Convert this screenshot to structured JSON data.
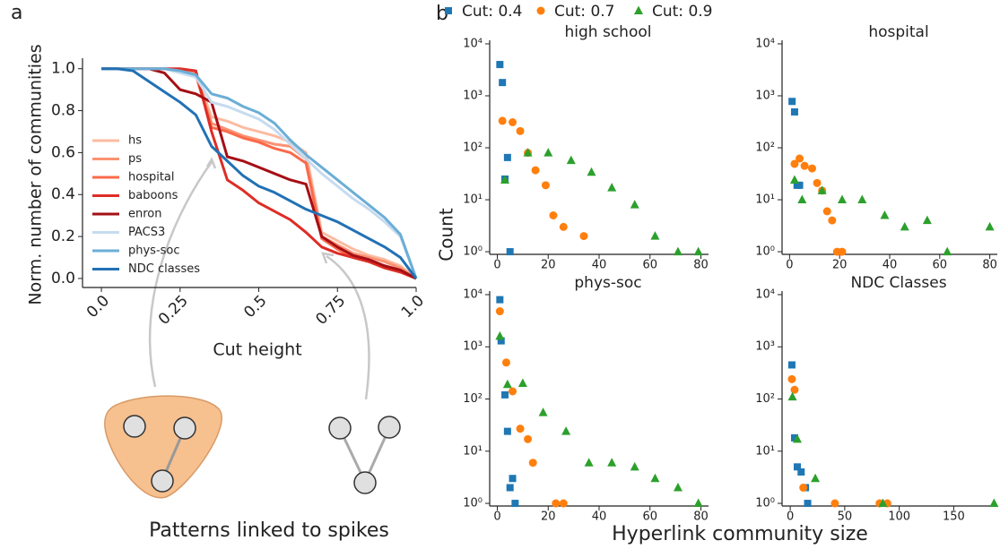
{
  "panels": [
    "a",
    "b"
  ],
  "figure": {
    "ylabel": "Count",
    "xlabel": "Hyperlink community size",
    "caption": "Patterns linked to spikes"
  },
  "chart_data": [
    {
      "type": "line",
      "xlabel": "Cut height",
      "ylabel": "Norm. number of communities",
      "x": [
        0,
        0.05,
        0.1,
        0.15,
        0.2,
        0.25,
        0.3,
        0.35,
        0.4,
        0.45,
        0.5,
        0.55,
        0.6,
        0.65,
        0.7,
        0.75,
        0.8,
        0.85,
        0.9,
        0.95,
        1.0
      ],
      "xlim": [
        -0.06,
        1.0
      ],
      "xticks": [
        {
          "value": 0,
          "label": "0.0"
        },
        0.25,
        0.5,
        0.75,
        {
          "value": 1,
          "label": "1.0"
        }
      ],
      "ylim": [
        -0.043,
        1.05
      ],
      "yticks": [
        {
          "value": 0,
          "label": "0.0"
        },
        0.2,
        0.4,
        0.6,
        0.8,
        {
          "value": 1,
          "label": "1.0"
        }
      ],
      "legend": "center left",
      "series": [
        {
          "name": "hs",
          "color": "#fcbba1",
          "values": [
            1,
            1,
            1,
            1,
            1,
            0.99,
            0.98,
            0.77,
            0.75,
            0.72,
            0.7,
            0.68,
            0.65,
            0.6,
            0.22,
            0.18,
            0.14,
            0.11,
            0.09,
            0.06,
            0
          ]
        },
        {
          "name": "ps",
          "color": "#fc9272",
          "values": [
            1,
            1,
            1,
            1,
            1,
            0.99,
            0.98,
            0.74,
            0.71,
            0.68,
            0.66,
            0.64,
            0.63,
            0.57,
            0.2,
            0.16,
            0.12,
            0.1,
            0.08,
            0.05,
            0
          ]
        },
        {
          "name": "hospital",
          "color": "#fb6a4a",
          "values": [
            1,
            1,
            1,
            1,
            1,
            0.99,
            0.97,
            0.72,
            0.7,
            0.67,
            0.65,
            0.62,
            0.6,
            0.55,
            0.19,
            0.14,
            0.1,
            0.08,
            0.06,
            0.04,
            0
          ]
        },
        {
          "name": "baboons",
          "color": "#de2d26",
          "values": [
            1,
            1,
            1,
            1,
            1,
            1,
            0.99,
            0.7,
            0.47,
            0.42,
            0.36,
            0.32,
            0.28,
            0.22,
            0.15,
            0.12,
            0.1,
            0.08,
            0.05,
            0.03,
            0
          ]
        },
        {
          "name": "enron",
          "color": "#a50f15",
          "values": [
            1,
            1,
            1,
            1,
            0.98,
            0.9,
            0.88,
            0.84,
            0.58,
            0.56,
            0.53,
            0.5,
            0.47,
            0.45,
            0.2,
            0.15,
            0.11,
            0.09,
            0.06,
            0.04,
            0
          ]
        },
        {
          "name": "PACS3",
          "color": "#c6dbef",
          "values": [
            1,
            1,
            1,
            1,
            1,
            0.98,
            0.96,
            0.84,
            0.82,
            0.79,
            0.76,
            0.71,
            0.64,
            0.57,
            0.5,
            0.44,
            0.38,
            0.33,
            0.27,
            0.2,
            0
          ]
        },
        {
          "name": "phys-soc",
          "color": "#6baed6",
          "values": [
            1,
            1,
            1,
            1,
            1,
            0.99,
            0.97,
            0.88,
            0.86,
            0.82,
            0.79,
            0.74,
            0.66,
            0.59,
            0.53,
            0.47,
            0.41,
            0.35,
            0.29,
            0.21,
            0
          ]
        },
        {
          "name": "NDC classes",
          "color": "#2171b5",
          "values": [
            1,
            1,
            0.99,
            0.94,
            0.89,
            0.84,
            0.78,
            0.63,
            0.56,
            0.49,
            0.44,
            0.41,
            0.37,
            0.33,
            0.3,
            0.27,
            0.23,
            0.19,
            0.15,
            0.1,
            0
          ]
        }
      ]
    },
    {
      "type": "scatter",
      "title": "high school",
      "yscale": "log",
      "legend": "top",
      "xlim": [
        -3,
        83
      ],
      "xticks": [
        0,
        20,
        40,
        60,
        80
      ],
      "ylim": [
        0.89,
        11700
      ],
      "yticks": [
        {
          "value": 1,
          "label": "10⁰"
        },
        {
          "value": 10,
          "label": "10¹"
        },
        {
          "value": 100,
          "label": "10²"
        },
        {
          "value": 1000,
          "label": "10³"
        },
        {
          "value": 10000,
          "label": "10⁴"
        }
      ],
      "series": [
        {
          "name": "Cut: 0.4",
          "color": "#1f77b4",
          "marker": "square",
          "x": [
            1,
            2,
            4,
            3,
            5
          ],
          "values": [
            4000,
            1800,
            65,
            25,
            1
          ]
        },
        {
          "name": "Cut: 0.7",
          "color": "#ff7f0e",
          "marker": "circle",
          "x": [
            2,
            6,
            9,
            12,
            15,
            19,
            22,
            26,
            34
          ],
          "values": [
            330,
            310,
            210,
            80,
            37,
            19,
            5,
            3,
            2
          ]
        },
        {
          "name": "Cut: 0.9",
          "color": "#2ca02c",
          "marker": "triangle",
          "x": [
            3,
            12,
            20,
            29,
            37,
            45,
            54,
            62,
            71,
            79
          ],
          "values": [
            24,
            80,
            80,
            57,
            34,
            17,
            8,
            2,
            1,
            1
          ]
        }
      ]
    },
    {
      "type": "scatter",
      "title": "hospital",
      "yscale": "log",
      "xlim": [
        -3,
        83
      ],
      "xticks": [
        0,
        20,
        40,
        60,
        80
      ],
      "ylim": [
        0.89,
        11700
      ],
      "yticks": [
        {
          "value": 1,
          "label": "10⁰"
        },
        {
          "value": 10,
          "label": "10¹"
        },
        {
          "value": 100,
          "label": "10²"
        },
        {
          "value": 1000,
          "label": "10³"
        },
        {
          "value": 10000,
          "label": "10⁴"
        }
      ],
      "series": [
        {
          "color": "#1f77b4",
          "marker": "square",
          "x": [
            1,
            2,
            3,
            4
          ],
          "values": [
            780,
            490,
            19,
            19
          ]
        },
        {
          "color": "#ff7f0e",
          "marker": "circle",
          "x": [
            2,
            4,
            6,
            9,
            11,
            13,
            15,
            17,
            19,
            21
          ],
          "values": [
            49,
            62,
            45,
            40,
            21,
            15,
            6,
            4,
            1,
            1
          ]
        },
        {
          "color": "#2ca02c",
          "marker": "triangle",
          "x": [
            2,
            5,
            13,
            21,
            29,
            38,
            46,
            55,
            63,
            80
          ],
          "values": [
            24,
            10,
            15,
            10,
            10,
            5,
            3,
            4,
            1,
            3
          ]
        }
      ]
    },
    {
      "type": "scatter",
      "title": "phys-soc",
      "yscale": "log",
      "xlim": [
        -3,
        83
      ],
      "xticks": [
        0,
        20,
        40,
        60,
        80
      ],
      "ylim": [
        0.89,
        11700
      ],
      "yticks": [
        {
          "value": 1,
          "label": "10⁰"
        },
        {
          "value": 10,
          "label": "10¹"
        },
        {
          "value": 100,
          "label": "10²"
        },
        {
          "value": 1000,
          "label": "10³"
        },
        {
          "value": 10000,
          "label": "10⁴"
        }
      ],
      "series": [
        {
          "color": "#1f77b4",
          "marker": "square",
          "x": [
            1,
            1.5,
            3,
            4,
            6,
            5,
            7
          ],
          "values": [
            8000,
            1300,
            120,
            24,
            3,
            2,
            1
          ]
        },
        {
          "color": "#ff7f0e",
          "marker": "circle",
          "x": [
            1,
            3.5,
            6,
            9,
            12,
            14,
            23,
            26
          ],
          "values": [
            4800,
            500,
            140,
            27,
            17,
            6,
            1,
            1
          ]
        },
        {
          "color": "#2ca02c",
          "marker": "triangle",
          "x": [
            1,
            4,
            10,
            18,
            27,
            36,
            45,
            54,
            62,
            71,
            79
          ],
          "values": [
            1600,
            190,
            200,
            55,
            24,
            6,
            6,
            5,
            3,
            2,
            1
          ]
        }
      ]
    },
    {
      "type": "scatter",
      "title": "NDC Classes",
      "yscale": "log",
      "xlim": [
        -7.5,
        190
      ],
      "xticks": [
        0,
        50,
        100,
        150
      ],
      "ylim": [
        0.89,
        11700
      ],
      "yticks": [
        {
          "value": 1,
          "label": "10⁰"
        },
        {
          "value": 10,
          "label": "10¹"
        },
        {
          "value": 100,
          "label": "10²"
        },
        {
          "value": 1000,
          "label": "10³"
        },
        {
          "value": 10000,
          "label": "10⁴"
        }
      ],
      "series": [
        {
          "color": "#1f77b4",
          "marker": "square",
          "x": [
            1.5,
            4,
            6.5,
            10,
            14,
            16
          ],
          "values": [
            450,
            18,
            5,
            4,
            2,
            1
          ]
        },
        {
          "color": "#ff7f0e",
          "marker": "circle",
          "x": [
            1.5,
            4,
            12,
            41,
            82,
            89
          ],
          "values": [
            240,
            150,
            2,
            1,
            1,
            1
          ]
        },
        {
          "color": "#2ca02c",
          "marker": "triangle",
          "x": [
            2,
            6.5,
            23,
            85,
            187
          ],
          "values": [
            110,
            17,
            3,
            1,
            1
          ]
        }
      ]
    }
  ]
}
